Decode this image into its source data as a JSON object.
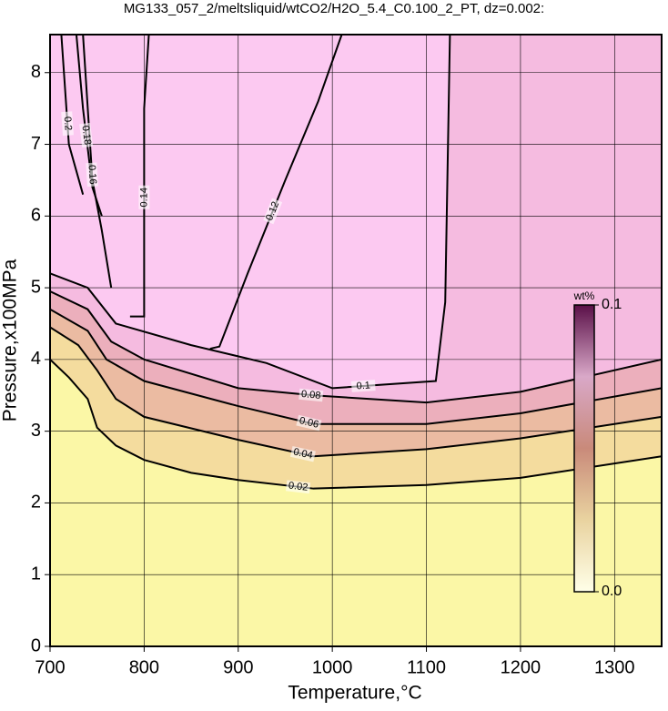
{
  "chart_data": {
    "type": "contour",
    "title": "MG133_057_2/meltsliquid/wtCO2/H2O_5.4_C0.100_2_PT, dz=0.002:",
    "x_label": "Temperature,°C",
    "y_label": "Pressure,x100MPa",
    "xlim": [
      700,
      1350
    ],
    "ylim": [
      0,
      8.53
    ],
    "xticks": [
      700,
      800,
      900,
      1000,
      1100,
      1200,
      1300
    ],
    "yticks": [
      0,
      1,
      2,
      3,
      4,
      5,
      6,
      7,
      8
    ],
    "grid": true,
    "colormap": [
      "#fbf7a6",
      "#f2d59c",
      "#e7a9a6",
      "#f3b8dc",
      "#fcc9f1"
    ],
    "colorbar": {
      "title": "wt%",
      "clim": [
        0,
        0.1
      ],
      "ticks": [
        {
          "value": 0,
          "label": "0.0"
        },
        0.1
      ]
    },
    "contours": [
      {
        "level": 0.02,
        "x": [
          700,
          720,
          740,
          750,
          770,
          800,
          850,
          900,
          980,
          1100,
          1200,
          1350
        ],
        "y": [
          4.0,
          3.75,
          3.45,
          3.05,
          2.8,
          2.6,
          2.42,
          2.32,
          2.2,
          2.25,
          2.35,
          2.65
        ]
      },
      {
        "level": 0.04,
        "x": [
          700,
          730,
          750,
          770,
          800,
          900,
          980,
          1100,
          1200,
          1350
        ],
        "y": [
          4.45,
          4.2,
          3.85,
          3.45,
          3.2,
          2.88,
          2.65,
          2.75,
          2.9,
          3.2
        ]
      },
      {
        "level": 0.06,
        "x": [
          700,
          740,
          760,
          800,
          900,
          980,
          1100,
          1200,
          1350
        ],
        "y": [
          4.7,
          4.4,
          4.0,
          3.7,
          3.35,
          3.1,
          3.1,
          3.25,
          3.6
        ]
      },
      {
        "level": 0.08,
        "x": [
          700,
          740,
          765,
          800,
          900,
          980,
          1100,
          1200,
          1350
        ],
        "y": [
          4.95,
          4.7,
          4.25,
          4.0,
          3.6,
          3.5,
          3.4,
          3.55,
          4.0
        ]
      },
      {
        "level": 0.1,
        "x": [
          700,
          740,
          770,
          850,
          930,
          1000,
          1110,
          1120,
          1125
        ],
        "y": [
          5.2,
          5.0,
          4.5,
          4.2,
          3.95,
          3.6,
          3.7,
          4.8,
          8.53
        ]
      },
      {
        "level": 0.12,
        "x": [
          870,
          880,
          910,
          950,
          985,
          1010
        ],
        "y": [
          4.15,
          4.18,
          5.2,
          6.5,
          7.6,
          8.53
        ]
      },
      {
        "level": 0.14,
        "x": [
          785,
          800,
          800,
          805
        ],
        "y": [
          4.6,
          4.6,
          7.5,
          8.53
        ]
      },
      {
        "level": 0.16,
        "x": [
          765,
          755,
          745,
          735
        ],
        "y": [
          5.0,
          5.8,
          6.5,
          8.53
        ]
      },
      {
        "level": 0.18,
        "x": [
          755,
          745,
          735,
          728
        ],
        "y": [
          6.0,
          6.4,
          7.5,
          8.53
        ]
      },
      {
        "level": 0.2,
        "x": [
          735,
          720,
          712
        ],
        "y": [
          6.3,
          7.0,
          8.53
        ]
      }
    ]
  }
}
